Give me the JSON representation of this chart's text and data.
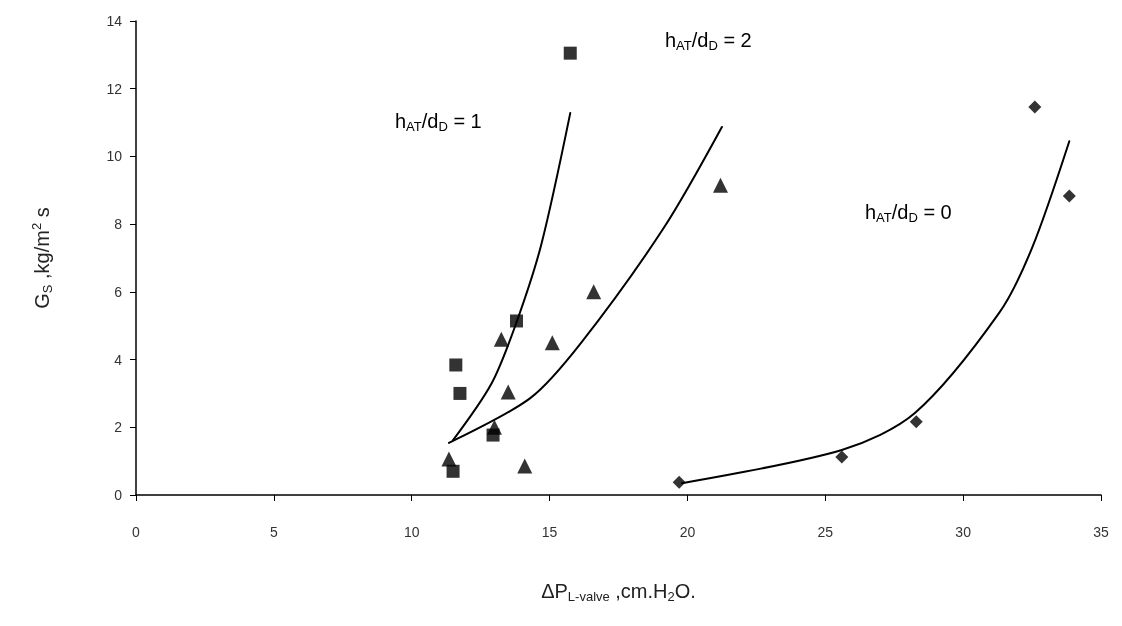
{
  "chart_data": {
    "type": "scatter",
    "xlabel": "ΔP$_{L-valve}$ ,cm.H$_{2}$O.",
    "ylabel": "G$_{S}$ ,kg/m$^{2}$ s",
    "xlim": [
      0,
      35
    ],
    "xticks": [
      0,
      5,
      10,
      15,
      20,
      25,
      30,
      35
    ],
    "ylim": [
      0,
      14
    ],
    "yticks": [
      0,
      2,
      4,
      6,
      8,
      10,
      12,
      14
    ],
    "grid": false,
    "series": [
      {
        "color": "#000000",
        "marker": "square",
        "x": [
          11.6,
          11.75,
          11.5,
          12.95,
          13.8,
          15.75
        ],
        "values": [
          3.84,
          3.0,
          0.7,
          1.77,
          5.14,
          13.05
        ]
      },
      {
        "color": "#000000",
        "marker": "triangle",
        "x": [
          11.35,
          13.0,
          13.5,
          13.25,
          15.1,
          16.6,
          14.1,
          21.2
        ],
        "values": [
          1.06,
          2.0,
          3.04,
          4.6,
          4.5,
          6.0,
          0.86,
          9.15
        ]
      },
      {
        "color": "#000000",
        "marker": "diamond",
        "x": [
          19.7,
          25.6,
          28.3,
          32.6,
          33.85
        ],
        "values": [
          0.38,
          1.12,
          2.16,
          11.46,
          8.83
        ]
      },
      {
        "type": "line",
        "color": "#000000",
        "marker": "none",
        "x": [
          11.5,
          12.9,
          13.8,
          14.7,
          15.75
        ],
        "values": [
          1.62,
          3.3,
          5.1,
          7.4,
          11.28
        ]
      },
      {
        "type": "line",
        "color": "#000000",
        "marker": "none",
        "x": [
          11.35,
          14.3,
          16.15,
          19.15,
          21.25
        ],
        "values": [
          1.54,
          2.86,
          4.5,
          7.9,
          10.87
        ]
      },
      {
        "type": "line",
        "color": "#000000",
        "marker": "none",
        "x": [
          19.8,
          25.6,
          28.25,
          31.3,
          32.5,
          33.85
        ],
        "values": [
          0.35,
          1.33,
          2.42,
          5.37,
          7.3,
          10.45
        ]
      }
    ],
    "annotations": [
      "h$_{AT}$/d$_{D}$ = 1",
      "h$_{AT}$/d$_{D}$ = 2",
      "h$_{AT}$/d$_{D}$ = 0"
    ]
  }
}
